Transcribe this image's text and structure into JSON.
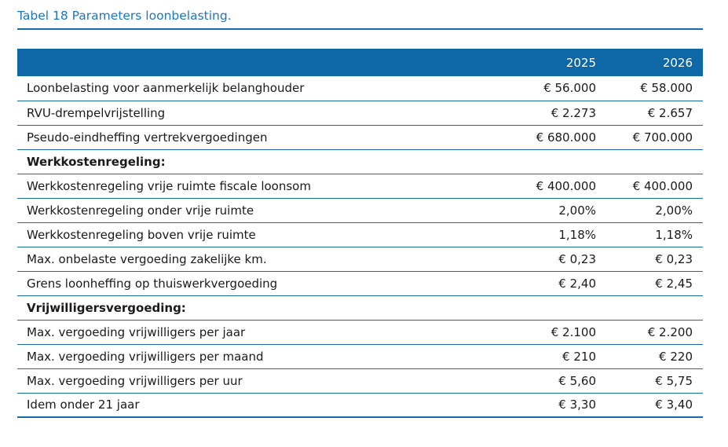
{
  "title": "Tabel 18 Parameters loonbelasting.",
  "colors": {
    "header_bg": "#0E68A8",
    "divider": "#1A6BA4",
    "title_text": "#1C76BE",
    "text": "#1A1A1A"
  },
  "table": {
    "columns": [
      "",
      "2025",
      "2026"
    ],
    "rows": [
      {
        "type": "data",
        "label": "Loonbelasting voor aanmerkelijk belanghouder",
        "y2025": "€ 56.000",
        "y2026": "€ 58.000"
      },
      {
        "type": "data",
        "label": "RVU-drempelvrijstelling",
        "y2025": "€ 2.273",
        "y2026": "€ 2.657"
      },
      {
        "type": "data",
        "label": "Pseudo-eindheffing vertrekvergoedingen",
        "y2025": "€ 680.000",
        "y2026": "€ 700.000"
      },
      {
        "type": "section",
        "label": "Werkkostenregeling:",
        "y2025": "",
        "y2026": ""
      },
      {
        "type": "data",
        "label": "Werkkostenregeling vrije ruimte fiscale loonsom",
        "y2025": "€ 400.000",
        "y2026": "€ 400.000"
      },
      {
        "type": "data",
        "label": "Werkkostenregeling onder vrije ruimte",
        "y2025": "2,00%",
        "y2026": "2,00%"
      },
      {
        "type": "data",
        "label": "Werkkostenregeling boven vrije ruimte",
        "y2025": "1,18%",
        "y2026": "1,18%"
      },
      {
        "type": "data",
        "label": "Max. onbelaste vergoeding zakelijke km.",
        "y2025": "€ 0,23",
        "y2026": "€ 0,23"
      },
      {
        "type": "data",
        "label": "Grens loonheffing op thuiswerkvergoeding",
        "y2025": "€ 2,40",
        "y2026": "€ 2,45"
      },
      {
        "type": "section",
        "label": "Vrijwilligersvergoeding:",
        "y2025": "",
        "y2026": ""
      },
      {
        "type": "data",
        "label": "Max. vergoeding vrijwilligers per jaar",
        "y2025": "€ 2.100",
        "y2026": "€ 2.200"
      },
      {
        "type": "data",
        "label": "Max. vergoeding vrijwilligers per maand",
        "y2025": "€ 210",
        "y2026": "€ 220"
      },
      {
        "type": "data",
        "label": "Max. vergoeding vrijwilligers per uur",
        "y2025": "€ 5,60",
        "y2026": "€ 5,75"
      },
      {
        "type": "data",
        "label": "Idem onder 21 jaar",
        "y2025": "€ 3,30",
        "y2026": "€ 3,40"
      }
    ]
  }
}
